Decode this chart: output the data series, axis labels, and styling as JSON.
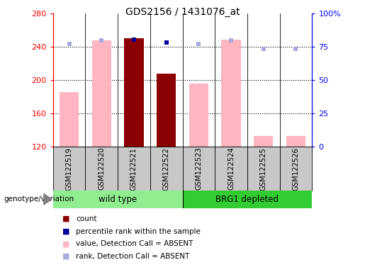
{
  "title": "GDS2156 / 1431076_at",
  "samples": [
    "GSM122519",
    "GSM122520",
    "GSM122521",
    "GSM122522",
    "GSM122523",
    "GSM122524",
    "GSM122525",
    "GSM122526"
  ],
  "ylim_left": [
    120,
    280
  ],
  "ylim_right": [
    0,
    100
  ],
  "yticks_left": [
    120,
    160,
    200,
    240,
    280
  ],
  "yticks_right": [
    0,
    25,
    50,
    75,
    100
  ],
  "ytick_labels_right": [
    "0",
    "25",
    "50",
    "75",
    "100%"
  ],
  "value_absent": [
    186,
    248,
    null,
    null,
    196,
    249,
    133,
    133
  ],
  "rank_absent": [
    244,
    248,
    null,
    null,
    244,
    248,
    238,
    238
  ],
  "count": [
    null,
    null,
    250,
    208,
    null,
    null,
    null,
    null
  ],
  "percentile_rank": [
    null,
    null,
    249,
    245,
    null,
    null,
    null,
    null
  ],
  "bar_color_count": "#8B0000",
  "bar_color_value_absent": "#FFB6C1",
  "marker_color_rank": "#AAAADD",
  "marker_color_percentile": "#000099",
  "legend_items": [
    "count",
    "percentile rank within the sample",
    "value, Detection Call = ABSENT",
    "rank, Detection Call = ABSENT"
  ],
  "legend_colors": [
    "#8B0000",
    "#000099",
    "#FFB6C1",
    "#AAAADD"
  ],
  "genotype_label": "genotype/variation",
  "wild_type_color": "#90EE90",
  "brg1_color": "#33CC33",
  "gray_box_color": "#C8C8C8",
  "dotted_yticks": [
    160,
    200,
    240
  ],
  "group_split": 4
}
